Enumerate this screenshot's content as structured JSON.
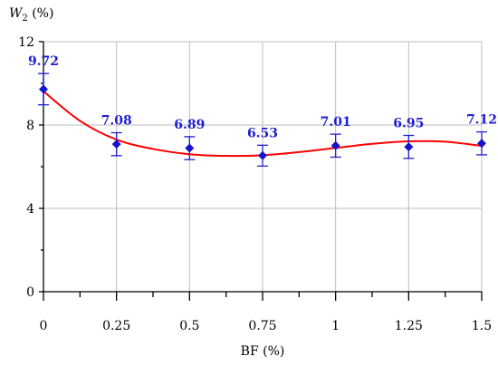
{
  "chart_data": {
    "type": "scatter",
    "xlabel": "BF (%)",
    "ylabel_var": "W",
    "ylabel_sub": "2",
    "ylabel_unit": " (%)",
    "x": [
      0,
      0.25,
      0.5,
      0.75,
      1,
      1.25,
      1.5
    ],
    "x_tick_labels": [
      "0",
      "0.25",
      "0.5",
      "0.75",
      "1",
      "1.25",
      "1.5"
    ],
    "xlim": [
      0,
      1.5
    ],
    "y_ticks": [
      0,
      4,
      8,
      12
    ],
    "y_tick_labels": [
      "0",
      "4",
      "8",
      "12"
    ],
    "ylim": [
      0,
      12
    ],
    "series": [
      {
        "values": [
          9.72,
          7.08,
          6.89,
          6.53,
          7.01,
          6.95,
          7.12
        ],
        "value_labels": [
          "9.72",
          "7.08",
          "6.89",
          "6.53",
          "7.01",
          "6.95",
          "7.12"
        ],
        "error": [
          0.75,
          0.55,
          0.55,
          0.5,
          0.55,
          0.55,
          0.55
        ],
        "marker": "diamond",
        "color": "#1414cc"
      }
    ],
    "fit_line": {
      "color": "#ff0000",
      "x": [
        0,
        0.125,
        0.25,
        0.375,
        0.5,
        0.625,
        0.75,
        0.875,
        1,
        1.125,
        1.25,
        1.375,
        1.5
      ],
      "y": [
        9.62,
        8.2,
        7.3,
        6.85,
        6.6,
        6.52,
        6.55,
        6.7,
        6.9,
        7.1,
        7.22,
        7.2,
        7.0
      ]
    },
    "grid": true
  }
}
